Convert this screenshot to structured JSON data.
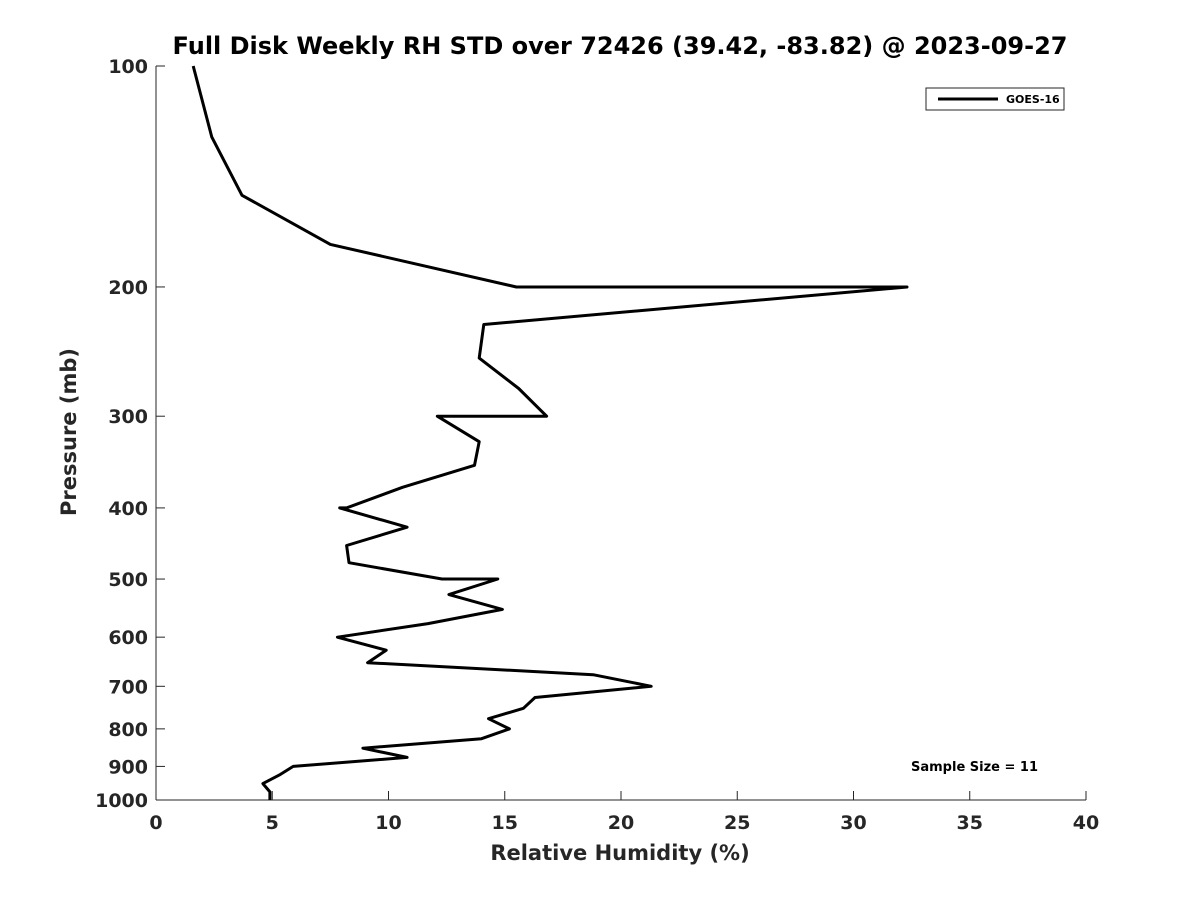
{
  "chart_data": {
    "type": "line",
    "title": "Full Disk Weekly RH STD over 72426 (39.42, -83.82) @ 2023-09-27",
    "xlabel": "Relative Humidity (%)",
    "ylabel": "Pressure (mb)",
    "xlim": [
      0,
      40
    ],
    "ylim": [
      100,
      1000
    ],
    "y_scale": "log",
    "y_reversed": true,
    "x_ticks": [
      0,
      5,
      10,
      15,
      20,
      25,
      30,
      35,
      40
    ],
    "y_ticks": [
      100,
      200,
      300,
      400,
      500,
      600,
      700,
      800,
      900,
      1000
    ],
    "grid": false,
    "legend_position": "top-right",
    "line_color": "#000000",
    "series": [
      {
        "name": "GOES-16",
        "points": [
          [
            1.6,
            100
          ],
          [
            2.4,
            125
          ],
          [
            3.7,
            150
          ],
          [
            7.5,
            175
          ],
          [
            15.5,
            200
          ],
          [
            32.3,
            200
          ],
          [
            14.1,
            225
          ],
          [
            13.9,
            250
          ],
          [
            15.6,
            275
          ],
          [
            16.8,
            300
          ],
          [
            12.1,
            300
          ],
          [
            13.9,
            325
          ],
          [
            13.7,
            350
          ],
          [
            10.6,
            375
          ],
          [
            8.2,
            400
          ],
          [
            7.9,
            400
          ],
          [
            10.8,
            425
          ],
          [
            8.2,
            450
          ],
          [
            8.3,
            475
          ],
          [
            12.3,
            500
          ],
          [
            14.7,
            500
          ],
          [
            12.6,
            525
          ],
          [
            14.9,
            550
          ],
          [
            11.7,
            575
          ],
          [
            7.8,
            600
          ],
          [
            9.9,
            625
          ],
          [
            9.1,
            650
          ],
          [
            18.8,
            675
          ],
          [
            21.3,
            700
          ],
          [
            16.3,
            725
          ],
          [
            15.8,
            750
          ],
          [
            14.3,
            775
          ],
          [
            15.2,
            800
          ],
          [
            14.0,
            825
          ],
          [
            8.9,
            850
          ],
          [
            10.8,
            875
          ],
          [
            5.9,
            900
          ],
          [
            5.3,
            925
          ],
          [
            4.6,
            950
          ],
          [
            4.9,
            975
          ],
          [
            4.9,
            1000
          ]
        ]
      }
    ],
    "annotation": "Sample Size = 11"
  }
}
